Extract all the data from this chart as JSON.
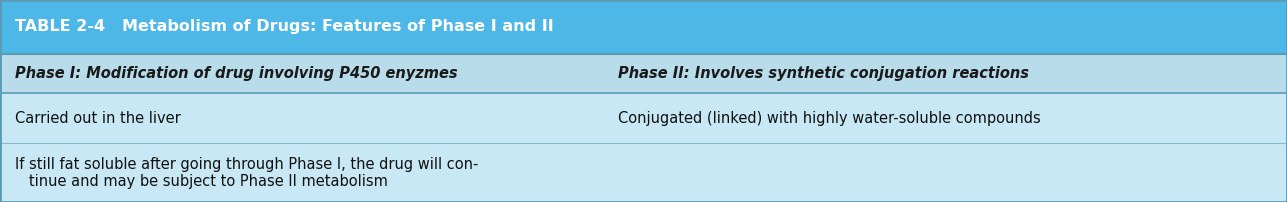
{
  "title": "TABLE 2-4   Metabolism of Drugs: Features of Phase I and II",
  "header_bg": "#4db8e8",
  "header_text_color": "#ffffff",
  "subheader_bg": "#b8dcea",
  "body_bg": "#c8e8f5",
  "border_color": "#5a9ab5",
  "col1_header": "Phase I: Modification of drug involving P450 enyzmes",
  "col2_header": "Phase II: Involves synthetic conjugation reactions",
  "col1_rows": [
    "Carried out in the liver",
    "If still fat soluble after going through Phase I, the drug will con-\n   tinue and may be subject to Phase II metabolism"
  ],
  "col2_rows": [
    "Conjugated (linked) with highly water-soluble compounds",
    ""
  ],
  "col_split": 0.47,
  "title_fontsize": 11.5,
  "header_fontsize": 10.5,
  "body_fontsize": 10.5
}
